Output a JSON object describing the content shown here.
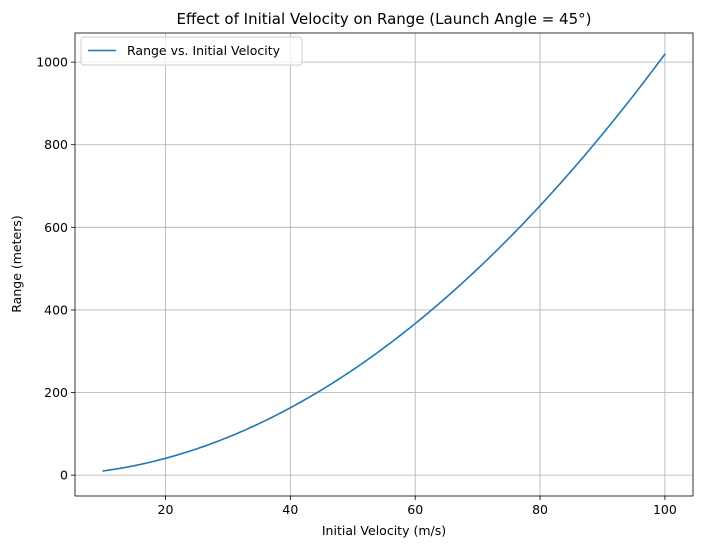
{
  "chart_data": {
    "type": "line",
    "title": "Effect of Initial Velocity on Range (Launch Angle = 45°)",
    "xlabel": "Initial Velocity (m/s)",
    "ylabel": "Range (meters)",
    "xlim": [
      5.5,
      104.5
    ],
    "ylim": [
      -50.5,
      1070.5
    ],
    "xticks": [
      20,
      40,
      60,
      80,
      100
    ],
    "yticks": [
      0,
      200,
      400,
      600,
      800,
      1000
    ],
    "grid": true,
    "legend_position": "top-left",
    "series": [
      {
        "name": "Range vs. Initial Velocity",
        "color": "#1f77b4",
        "x": [
          10,
          15,
          20,
          25,
          30,
          35,
          40,
          45,
          50,
          55,
          60,
          65,
          70,
          75,
          80,
          85,
          90,
          95,
          100
        ],
        "y": [
          10.2,
          22.9,
          40.8,
          63.7,
          91.7,
          124.9,
          163.1,
          206.4,
          254.8,
          308.4,
          367.0,
          430.7,
          499.5,
          573.4,
          652.4,
          736.5,
          825.7,
          919.9,
          1019.4
        ]
      }
    ]
  }
}
